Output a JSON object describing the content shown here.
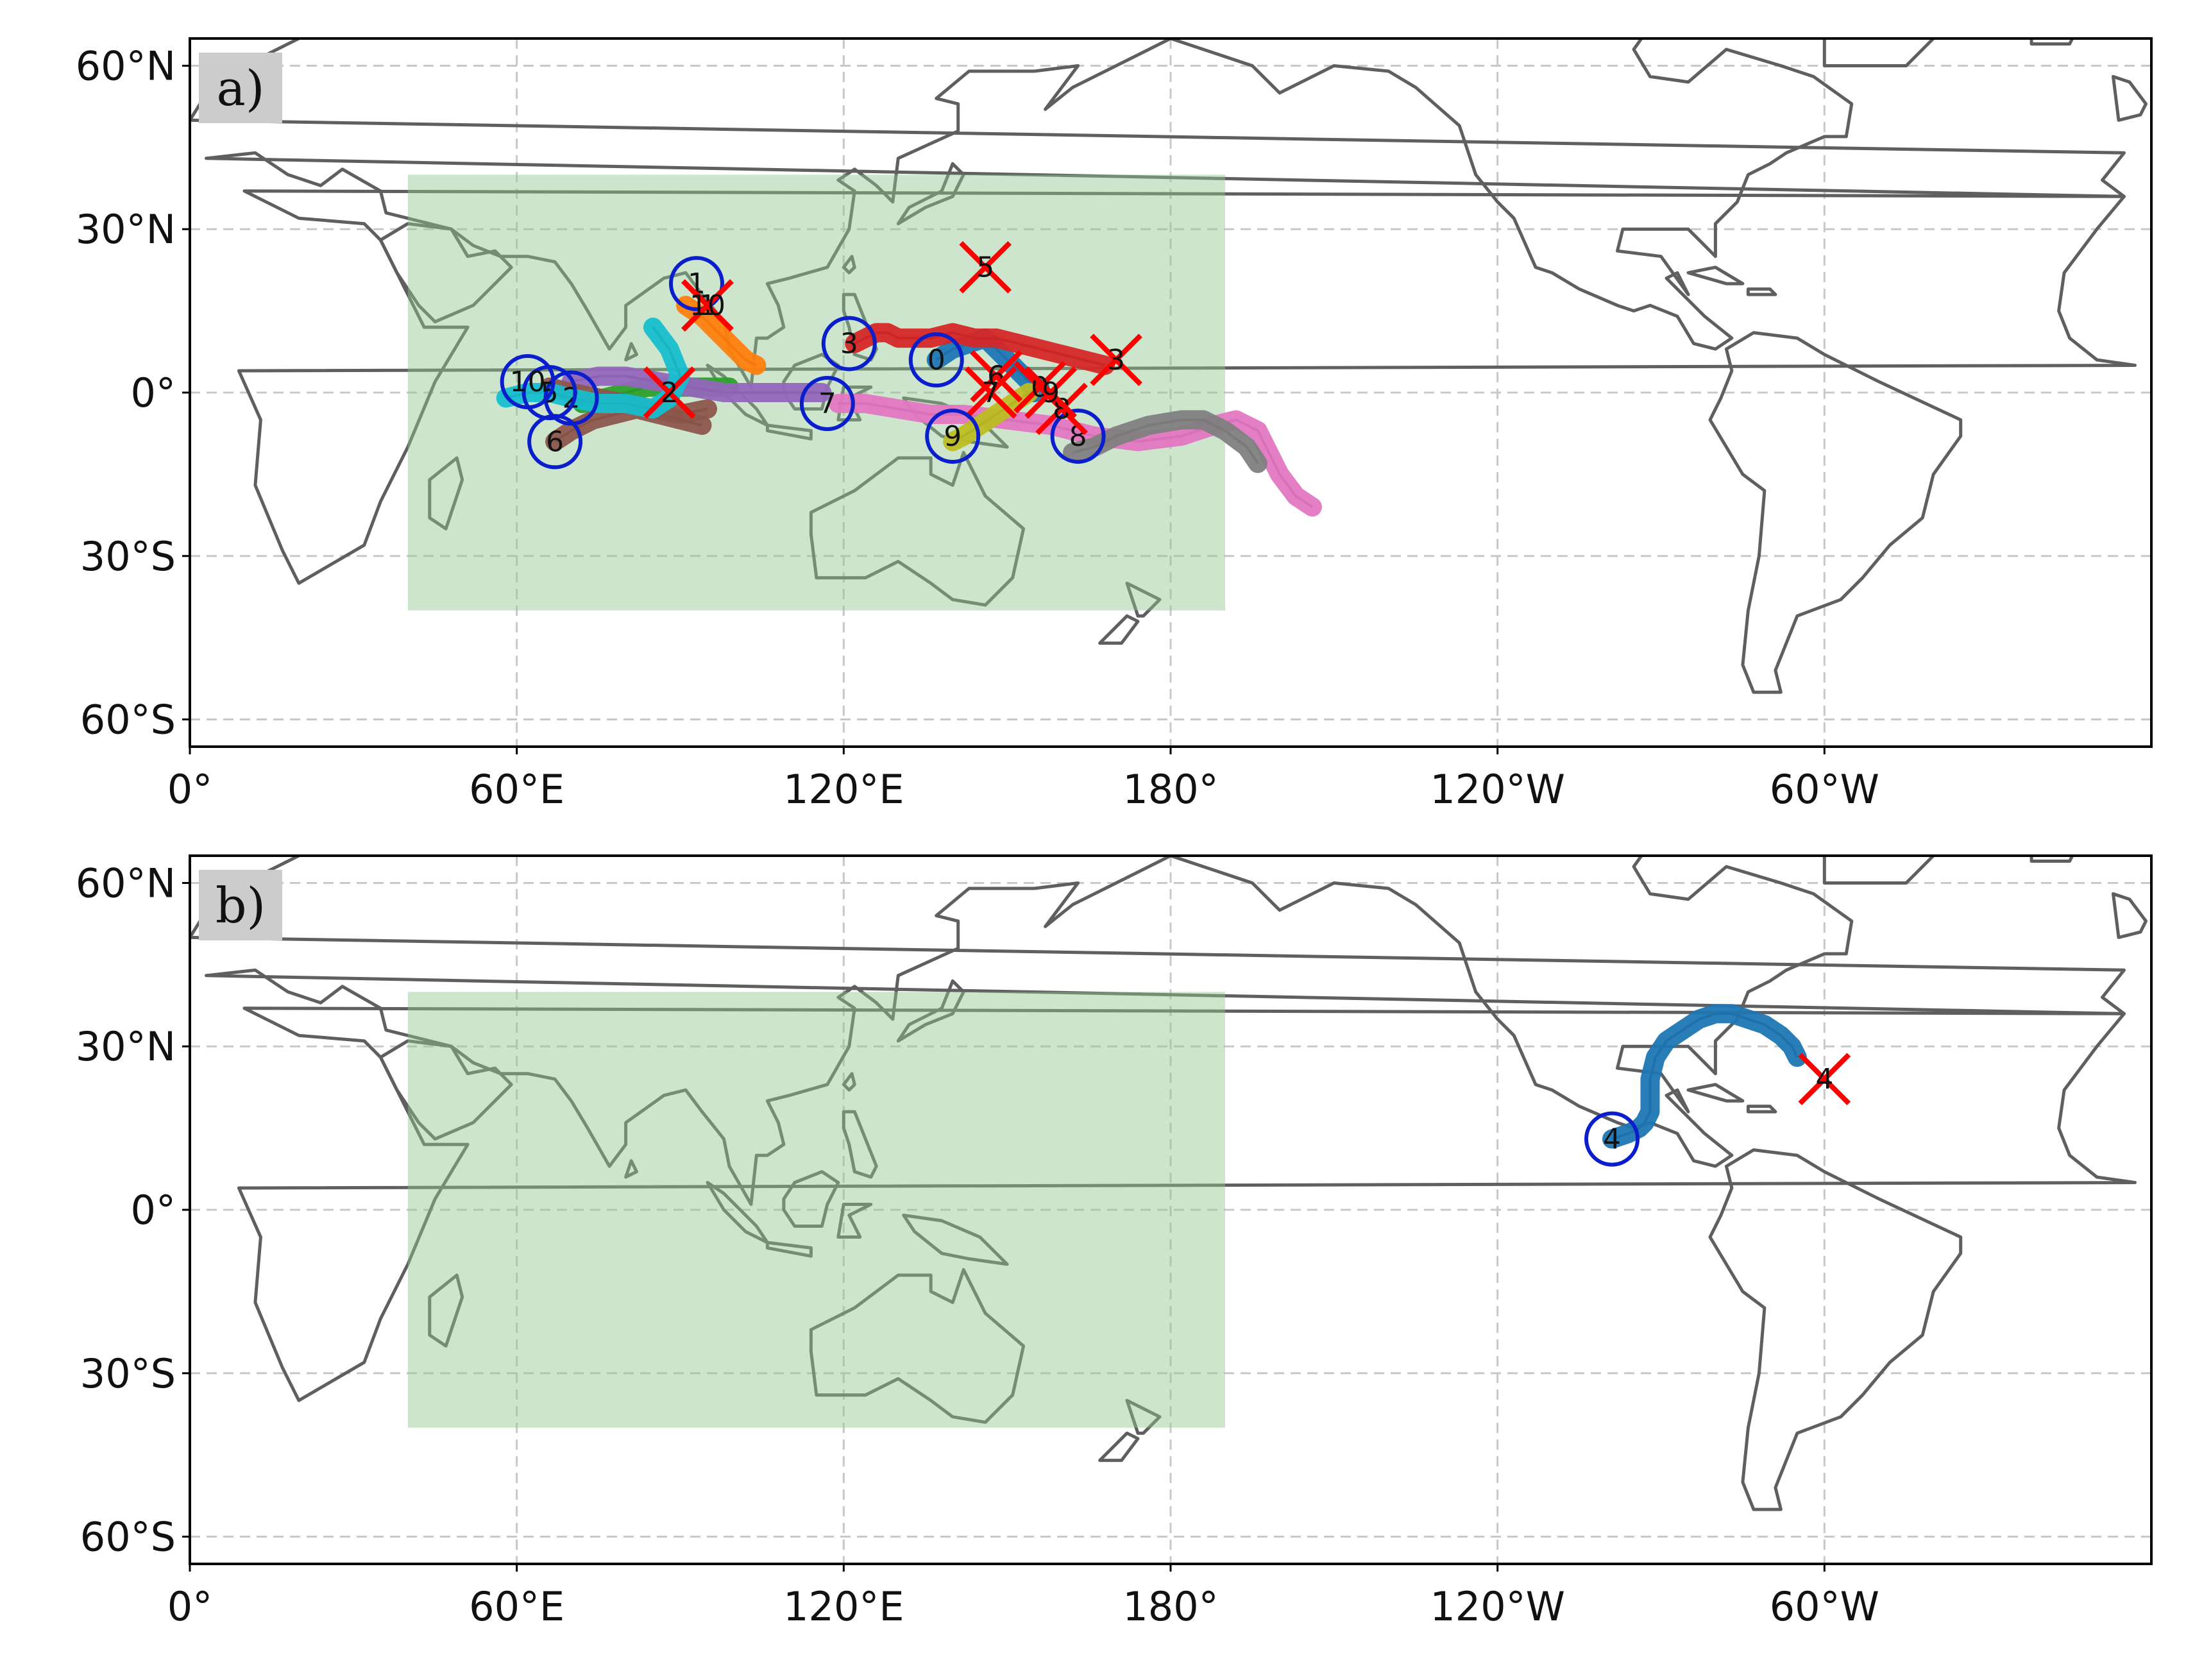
{
  "colors": {
    "land_outline": "#5f5f5f",
    "grid": "#c8c8c8",
    "domain_box": "#8fc68f",
    "genesis_marker": "#0a1ecc",
    "lysis_marker": "#ff0000",
    "panel_label_bg": "#cccccc",
    "track_palette": [
      "#1f77b4",
      "#ff7f0e",
      "#2ca02c",
      "#d62728",
      "#9467bd",
      "#8c564b",
      "#e377c2",
      "#7f7f7f",
      "#bcbd22",
      "#17becf"
    ]
  },
  "map": {
    "projection": "PlateCarree, central longitude 180",
    "lon_extent": [
      0,
      360
    ],
    "lat_extent": [
      -65,
      65
    ],
    "xticks": [
      {
        "lon": 0,
        "label": "0°"
      },
      {
        "lon": 60,
        "label": "60°E"
      },
      {
        "lon": 120,
        "label": "120°E"
      },
      {
        "lon": 180,
        "label": "180°"
      },
      {
        "lon": 240,
        "label": "120°W"
      },
      {
        "lon": 300,
        "label": "60°W"
      }
    ],
    "yticks": [
      {
        "lat": 60,
        "label": "60°N"
      },
      {
        "lat": 30,
        "label": "30°N"
      },
      {
        "lat": 0,
        "label": "0°"
      },
      {
        "lat": -30,
        "label": "30°S"
      },
      {
        "lat": -60,
        "label": "60°S"
      }
    ],
    "domain_box": {
      "lon": [
        40,
        190
      ],
      "lat": [
        -40,
        40
      ]
    }
  },
  "panels": [
    {
      "label": "a)",
      "tracks": [
        {
          "id": "0",
          "color": "#1f77b4",
          "points": [
            [
              137,
              6
            ],
            [
              140,
              8
            ],
            [
              143,
              9
            ],
            [
              146,
              10
            ],
            [
              148,
              8
            ],
            [
              150,
              6
            ],
            [
              152,
              4
            ],
            [
              154,
              2
            ],
            [
              155,
              0
            ],
            [
              156,
              1
            ]
          ],
          "genesis": [
            137,
            6
          ],
          "lysis": [
            156,
            1
          ],
          "start_label": "0",
          "end_label": "0"
        },
        {
          "id": "1",
          "color": "#ff7f0e",
          "points": [
            [
              91,
              16
            ],
            [
              94,
              14
            ],
            [
              96,
              12
            ],
            [
              98,
              10
            ],
            [
              100,
              8
            ],
            [
              102,
              6
            ],
            [
              104,
              5
            ]
          ],
          "genesis": [
            93,
            20
          ],
          "lysis": [
            95,
            16
          ],
          "start_label": "1",
          "end_label": "1"
        },
        {
          "id": "2",
          "color": "#2ca02c",
          "points": [
            [
              72,
              -2
            ],
            [
              76,
              -1
            ],
            [
              80,
              0
            ],
            [
              84,
              1
            ],
            [
              88,
              1
            ],
            [
              92,
              1
            ],
            [
              96,
              1
            ],
            [
              99,
              1
            ]
          ],
          "genesis": [
            70,
            -1
          ],
          "lysis": [
            88,
            0
          ],
          "start_label": "2",
          "end_label": "2"
        },
        {
          "id": "3",
          "color": "#d62728",
          "points": [
            [
              122,
              9
            ],
            [
              124,
              10
            ],
            [
              126,
              11
            ],
            [
              128,
              11
            ],
            [
              130,
              10
            ],
            [
              133,
              10
            ],
            [
              136,
              10
            ],
            [
              140,
              11
            ],
            [
              144,
              10
            ],
            [
              148,
              10
            ],
            [
              152,
              9
            ],
            [
              156,
              8
            ],
            [
              160,
              7
            ],
            [
              164,
              6
            ],
            [
              168,
              5
            ]
          ],
          "genesis": [
            121,
            9
          ],
          "lysis": [
            170,
            6
          ],
          "start_label": "3",
          "end_label": "3"
        },
        {
          "id": "4",
          "color": "#9467bd",
          "points": [
            [
              70,
              2
            ],
            [
              75,
              3
            ],
            [
              80,
              3
            ],
            [
              86,
              2
            ],
            [
              92,
              1
            ],
            [
              98,
              0
            ],
            [
              104,
              0
            ],
            [
              110,
              0
            ],
            [
              116,
              0
            ]
          ],
          "genesis": [
            65,
            1
          ],
          "lysis": [
            118,
            1
          ],
          "start_label": "",
          "end_label": ""
        },
        {
          "id": "5",
          "color": "#8c564b",
          "points": [
            [
              66,
              1
            ],
            [
              70,
              0
            ],
            [
              75,
              -1
            ],
            [
              80,
              -2
            ],
            [
              85,
              -3
            ],
            [
              90,
              -4
            ],
            [
              95,
              -3
            ]
          ],
          "genesis": [
            66,
            0
          ],
          "lysis": [
            146,
            23
          ],
          "start_label": "5",
          "end_label": "5"
        },
        {
          "id": "6",
          "color": "#8c564b",
          "points": [
            [
              67,
              -9
            ],
            [
              70,
              -7
            ],
            [
              74,
              -5
            ],
            [
              78,
              -4
            ],
            [
              82,
              -3
            ],
            [
              86,
              -4
            ],
            [
              90,
              -5
            ],
            [
              94,
              -6
            ]
          ],
          "genesis": [
            67,
            -9
          ],
          "lysis": [
            148,
            3
          ],
          "start_label": "6",
          "end_label": "6"
        },
        {
          "id": "7",
          "color": "#e377c2",
          "points": [
            [
              119,
              -2
            ],
            [
              124,
              -2
            ],
            [
              130,
              -3
            ],
            [
              136,
              -4
            ],
            [
              142,
              -4
            ],
            [
              150,
              -5
            ],
            [
              158,
              -6
            ],
            [
              166,
              -8
            ],
            [
              174,
              -9
            ],
            [
              182,
              -8
            ],
            [
              188,
              -6
            ],
            [
              192,
              -5
            ],
            [
              196,
              -7
            ],
            [
              198,
              -11
            ],
            [
              200,
              -15
            ],
            [
              203,
              -19
            ],
            [
              206,
              -21
            ]
          ],
          "genesis": [
            117,
            -2
          ],
          "lysis": [
            147,
            0
          ],
          "start_label": "7",
          "end_label": "7"
        },
        {
          "id": "8",
          "color": "#7f7f7f",
          "points": [
            [
              162,
              -11
            ],
            [
              166,
              -10
            ],
            [
              170,
              -8
            ],
            [
              176,
              -6
            ],
            [
              182,
              -5
            ],
            [
              186,
              -5
            ],
            [
              190,
              -7
            ],
            [
              194,
              -10
            ],
            [
              196,
              -13
            ]
          ],
          "genesis": [
            163,
            -8
          ],
          "lysis": [
            160,
            -3
          ],
          "start_label": "8",
          "end_label": "8"
        },
        {
          "id": "9",
          "color": "#bcbd22",
          "points": [
            [
              140,
              -9
            ],
            [
              142,
              -8
            ],
            [
              145,
              -6
            ],
            [
              148,
              -4
            ],
            [
              151,
              -2
            ],
            [
              154,
              0
            ]
          ],
          "genesis": [
            140,
            -8
          ],
          "lysis": [
            158,
            0
          ],
          "start_label": "9",
          "end_label": "9"
        },
        {
          "id": "10",
          "color": "#17becf",
          "points": [
            [
              58,
              -1
            ],
            [
              62,
              0
            ],
            [
              66,
              0
            ],
            [
              70,
              -1
            ],
            [
              75,
              -2
            ],
            [
              80,
              -2
            ],
            [
              85,
              -3
            ],
            [
              88,
              -1
            ],
            [
              90,
              3
            ],
            [
              88,
              8
            ],
            [
              85,
              12
            ]
          ],
          "genesis": [
            62,
            2
          ],
          "lysis": [
            95,
            16
          ],
          "start_label": "10",
          "end_label": "10"
        }
      ]
    },
    {
      "label": "b)",
      "tracks": [
        {
          "id": "4",
          "color": "#1f77b4",
          "points": [
            [
              261,
              13
            ],
            [
              264,
              14
            ],
            [
              266,
              15
            ],
            [
              267,
              16
            ],
            [
              268,
              18
            ],
            [
              268,
              21
            ],
            [
              268,
              24
            ],
            [
              269,
              28
            ],
            [
              271,
              31
            ],
            [
              274,
              33
            ],
            [
              277,
              35
            ],
            [
              280,
              36
            ],
            [
              283,
              36
            ],
            [
              286,
              35
            ],
            [
              289,
              34
            ],
            [
              292,
              32
            ],
            [
              294,
              30
            ],
            [
              295,
              28
            ]
          ],
          "genesis": [
            261,
            13
          ],
          "lysis": [
            300,
            24
          ],
          "start_label": "4",
          "end_label": "4"
        }
      ]
    }
  ]
}
